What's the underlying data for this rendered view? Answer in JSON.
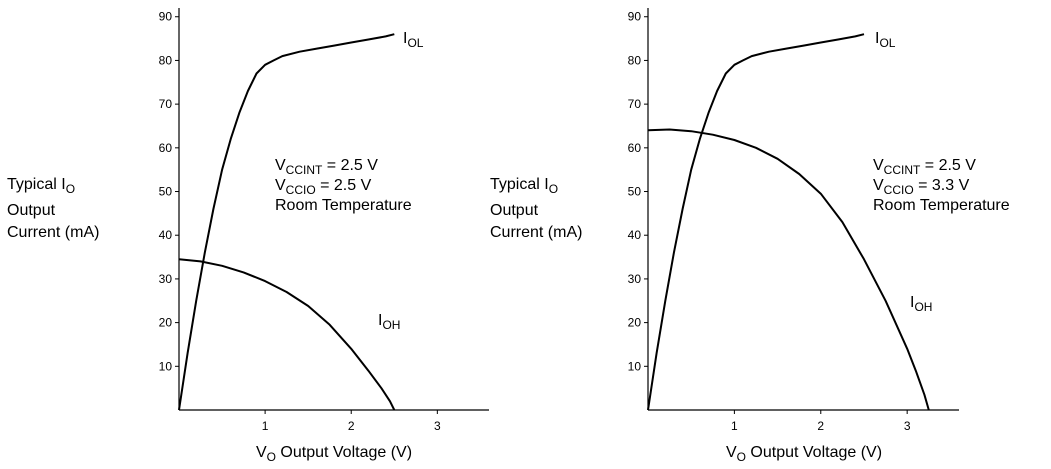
{
  "chart_data": [
    {
      "type": "line",
      "ylabel_lines": [
        {
          "text": "Typical I",
          "sub": "O"
        },
        {
          "text": "Output",
          "sub": ""
        },
        {
          "text": "Current (mA)",
          "sub": ""
        }
      ],
      "xlabel": {
        "pre": "V",
        "sub": "O",
        "post": " Output Voltage (V)"
      },
      "xlim": [
        0,
        3.6
      ],
      "ylim": [
        0,
        92
      ],
      "xticks": [
        1,
        2,
        3
      ],
      "yticks": [
        10,
        20,
        30,
        40,
        50,
        60,
        70,
        80,
        90
      ],
      "grid": false,
      "annotation": [
        {
          "pre": "V",
          "sub": "CCINT",
          "post": " = 2.5 V"
        },
        {
          "pre": "V",
          "sub": "CCIO",
          "post": " = 2.5 V"
        },
        {
          "pre": "Room Temperature",
          "sub": "",
          "post": ""
        }
      ],
      "series": [
        {
          "name": "IOL",
          "label": {
            "pre": "I",
            "sub": "OL"
          },
          "x": [
            0,
            0.1,
            0.2,
            0.3,
            0.4,
            0.5,
            0.6,
            0.7,
            0.8,
            0.9,
            1.0,
            1.1,
            1.2,
            1.4,
            1.6,
            1.8,
            2.0,
            2.2,
            2.4,
            2.5
          ],
          "y": [
            0,
            13,
            25,
            36,
            46,
            55,
            62,
            68,
            73,
            77,
            79,
            80,
            81,
            82,
            82.7,
            83.4,
            84.1,
            84.8,
            85.5,
            86
          ]
        },
        {
          "name": "IOH",
          "label": {
            "pre": "I",
            "sub": "OH"
          },
          "x": [
            0,
            0.25,
            0.5,
            0.75,
            1.0,
            1.25,
            1.5,
            1.75,
            2.0,
            2.2,
            2.35,
            2.45,
            2.5
          ],
          "y": [
            34.5,
            34,
            33,
            31.5,
            29.5,
            27,
            23.8,
            19.5,
            14,
            9,
            5,
            2,
            0
          ]
        }
      ]
    },
    {
      "type": "line",
      "ylabel_lines": [
        {
          "text": "Typical I",
          "sub": "O"
        },
        {
          "text": "Output",
          "sub": ""
        },
        {
          "text": "Current (mA)",
          "sub": ""
        }
      ],
      "xlabel": {
        "pre": "V",
        "sub": "O",
        "post": " Output Voltage (V)"
      },
      "xlim": [
        0,
        3.6
      ],
      "ylim": [
        0,
        92
      ],
      "xticks": [
        1,
        2,
        3
      ],
      "yticks": [
        10,
        20,
        30,
        40,
        50,
        60,
        70,
        80,
        90
      ],
      "grid": false,
      "annotation": [
        {
          "pre": "V",
          "sub": "CCINT",
          "post": " = 2.5 V"
        },
        {
          "pre": "V",
          "sub": "CCIO",
          "post": " = 3.3 V"
        },
        {
          "pre": "Room Temperature",
          "sub": "",
          "post": ""
        }
      ],
      "series": [
        {
          "name": "IOL",
          "label": {
            "pre": "I",
            "sub": "OL"
          },
          "x": [
            0,
            0.1,
            0.2,
            0.3,
            0.4,
            0.5,
            0.6,
            0.7,
            0.8,
            0.9,
            1.0,
            1.1,
            1.2,
            1.4,
            1.6,
            1.8,
            2.0,
            2.2,
            2.4,
            2.5
          ],
          "y": [
            0,
            13,
            25,
            36,
            46,
            55,
            62,
            68,
            73,
            77,
            79,
            80,
            81,
            82,
            82.7,
            83.4,
            84.1,
            84.8,
            85.5,
            86
          ]
        },
        {
          "name": "IOH",
          "label": {
            "pre": "I",
            "sub": "OH"
          },
          "x": [
            0,
            0.25,
            0.5,
            0.75,
            1.0,
            1.25,
            1.5,
            1.75,
            2.0,
            2.25,
            2.5,
            2.75,
            3.0,
            3.1,
            3.2,
            3.25
          ],
          "y": [
            64,
            64.2,
            63.8,
            63,
            61.8,
            60,
            57.5,
            54,
            49.5,
            43,
            34.5,
            25,
            14,
            9,
            3.5,
            0
          ]
        }
      ]
    }
  ]
}
